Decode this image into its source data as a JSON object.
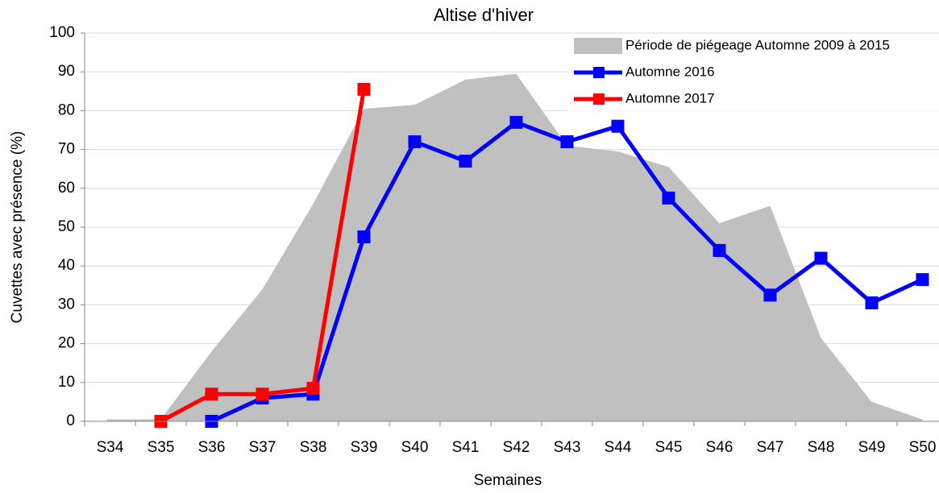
{
  "chart_data": {
    "type": "line",
    "title": "Altise d'hiver",
    "x_label": "Semaines",
    "y_label": "Cuvettes avec présence (%)",
    "categories": [
      "S34",
      "S35",
      "S36",
      "S37",
      "S38",
      "S39",
      "S40",
      "S41",
      "S42",
      "S43",
      "S44",
      "S45",
      "S46",
      "S47",
      "S48",
      "S49",
      "S50"
    ],
    "ylim": [
      0,
      100
    ],
    "yticks": [
      0,
      10,
      20,
      30,
      40,
      50,
      60,
      70,
      80,
      90,
      100
    ],
    "grid": true,
    "series": [
      {
        "name": "Période de piégeage Automne 2009 à 2015",
        "style": "area",
        "color": "#c0c0c0",
        "values": [
          0.5,
          0.5,
          18,
          34,
          56,
          80.5,
          81.5,
          88,
          89.5,
          71,
          69.5,
          65.5,
          51,
          55.5,
          21.5,
          5,
          0.5
        ]
      },
      {
        "name": "Automne 2016",
        "style": "line",
        "color": "#0000ff",
        "values": [
          null,
          null,
          0,
          6,
          7,
          47.5,
          72,
          67,
          77,
          72,
          76,
          57.5,
          44,
          32.5,
          42,
          30.5,
          36.5
        ]
      },
      {
        "name": "Automne 2017",
        "style": "line",
        "color": "#ff0000",
        "values": [
          null,
          0,
          7,
          7,
          8.5,
          85.5,
          null,
          null,
          null,
          null,
          null,
          null,
          null,
          null,
          null,
          null,
          null
        ]
      }
    ]
  }
}
